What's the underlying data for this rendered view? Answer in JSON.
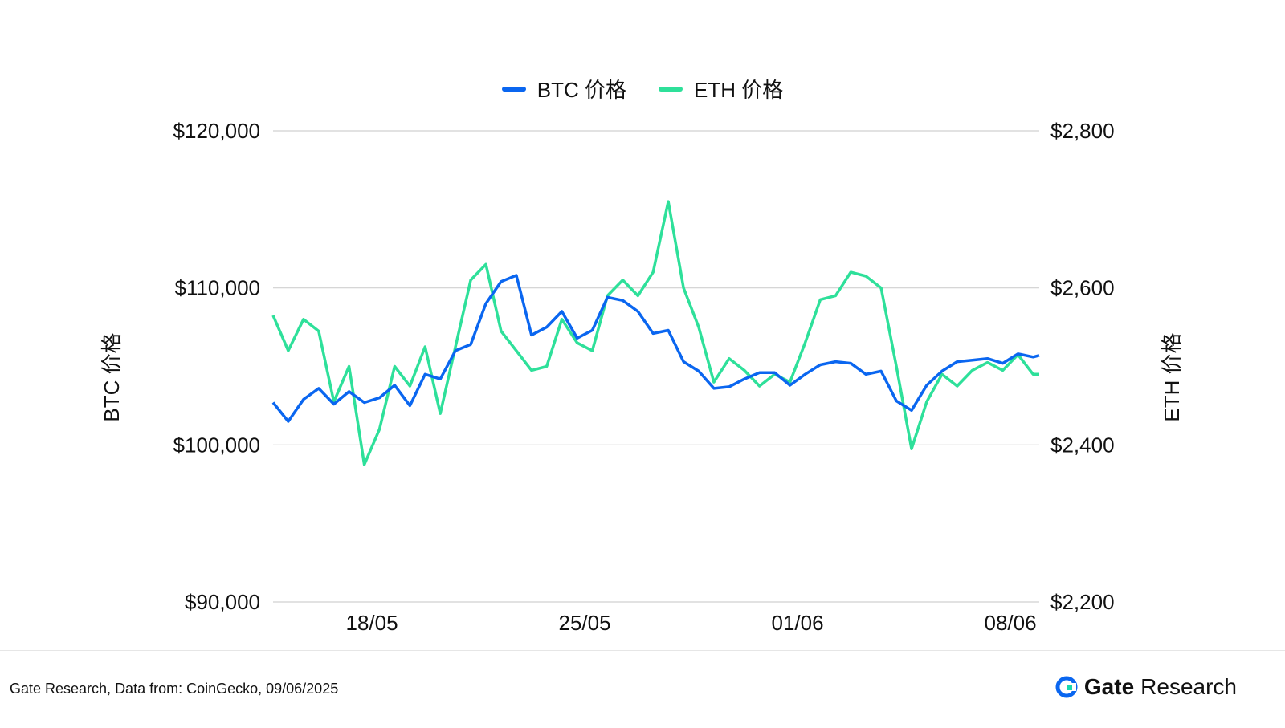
{
  "legend": {
    "btc_label": "BTC 价格",
    "eth_label": "ETH 价格"
  },
  "footer": {
    "source": "Gate Research, Data from: CoinGecko, 09/06/2025",
    "brand_part1": "Gate",
    "brand_part2": "Research"
  },
  "colors": {
    "btc": "#0a66f0",
    "eth": "#2ee09a",
    "grid": "#d0d0d0"
  },
  "chart_data": {
    "type": "line",
    "title": "",
    "xlabel": "",
    "ylabel_left": "BTC 价格",
    "ylabel_right": "ETH 价格",
    "x_ticks": [
      "18/05",
      "25/05",
      "01/06",
      "08/06"
    ],
    "x_tick_positions": [
      3.25,
      10.25,
      17.25,
      24.25
    ],
    "x_range": [
      0,
      25.2
    ],
    "y_left": {
      "ticks": [
        "$90,000",
        "$100,000",
        "$110,000",
        "$120,000"
      ],
      "range": [
        90000,
        120000
      ]
    },
    "y_right": {
      "ticks": [
        "$2,200",
        "$2,400",
        "$2,600",
        "$2,800"
      ],
      "range": [
        2200,
        2800
      ]
    },
    "grid": true,
    "legend_position": "top-center",
    "series": [
      {
        "name": "BTC 价格",
        "axis": "left",
        "x": [
          0.0,
          0.5,
          1.0,
          1.5,
          2.0,
          2.5,
          3.0,
          3.5,
          4.0,
          4.5,
          5.0,
          5.5,
          6.0,
          6.5,
          7.0,
          7.5,
          8.0,
          8.5,
          9.0,
          9.5,
          10.0,
          10.5,
          11.0,
          11.5,
          12.0,
          12.5,
          13.0,
          13.5,
          14.0,
          14.5,
          15.0,
          15.5,
          16.0,
          16.5,
          17.0,
          17.5,
          18.0,
          18.5,
          19.0,
          19.5,
          20.0,
          20.5,
          21.0,
          21.5,
          22.0,
          22.5,
          23.0,
          23.5,
          24.0,
          24.5,
          25.0,
          25.2
        ],
        "values": [
          102700,
          101500,
          102900,
          103600,
          102600,
          103400,
          102700,
          103000,
          103800,
          102500,
          104500,
          104200,
          106000,
          106400,
          109000,
          110400,
          110800,
          107000,
          107500,
          108500,
          106800,
          107300,
          109400,
          109200,
          108500,
          107100,
          107300,
          105300,
          104700,
          103600,
          103700,
          104200,
          104600,
          104600,
          103800,
          104500,
          105100,
          105300,
          105200,
          104500,
          104700,
          102800,
          102200,
          103800,
          104700,
          105300,
          105400,
          105500,
          105200,
          105800,
          105600,
          105700
        ],
        "color": "#0a66f0"
      },
      {
        "name": "ETH 价格",
        "axis": "right",
        "x": [
          0.0,
          0.5,
          1.0,
          1.5,
          2.0,
          2.5,
          3.0,
          3.5,
          4.0,
          4.5,
          5.0,
          5.5,
          6.0,
          6.5,
          7.0,
          7.5,
          8.0,
          8.5,
          9.0,
          9.5,
          10.0,
          10.5,
          11.0,
          11.5,
          12.0,
          12.5,
          13.0,
          13.5,
          14.0,
          14.5,
          15.0,
          15.5,
          16.0,
          16.5,
          17.0,
          17.5,
          18.0,
          18.5,
          19.0,
          19.5,
          20.0,
          20.5,
          21.0,
          21.5,
          22.0,
          22.5,
          23.0,
          23.5,
          24.0,
          24.5,
          25.0,
          25.2
        ],
        "values": [
          2565,
          2520,
          2560,
          2545,
          2455,
          2500,
          2375,
          2420,
          2500,
          2475,
          2525,
          2440,
          2525,
          2610,
          2630,
          2545,
          2520,
          2495,
          2500,
          2560,
          2530,
          2520,
          2590,
          2610,
          2590,
          2620,
          2710,
          2600,
          2550,
          2480,
          2510,
          2495,
          2475,
          2490,
          2480,
          2530,
          2585,
          2590,
          2620,
          2615,
          2600,
          2500,
          2395,
          2455,
          2490,
          2475,
          2495,
          2505,
          2495,
          2515,
          2490,
          2490
        ],
        "color": "#2ee09a"
      }
    ]
  }
}
